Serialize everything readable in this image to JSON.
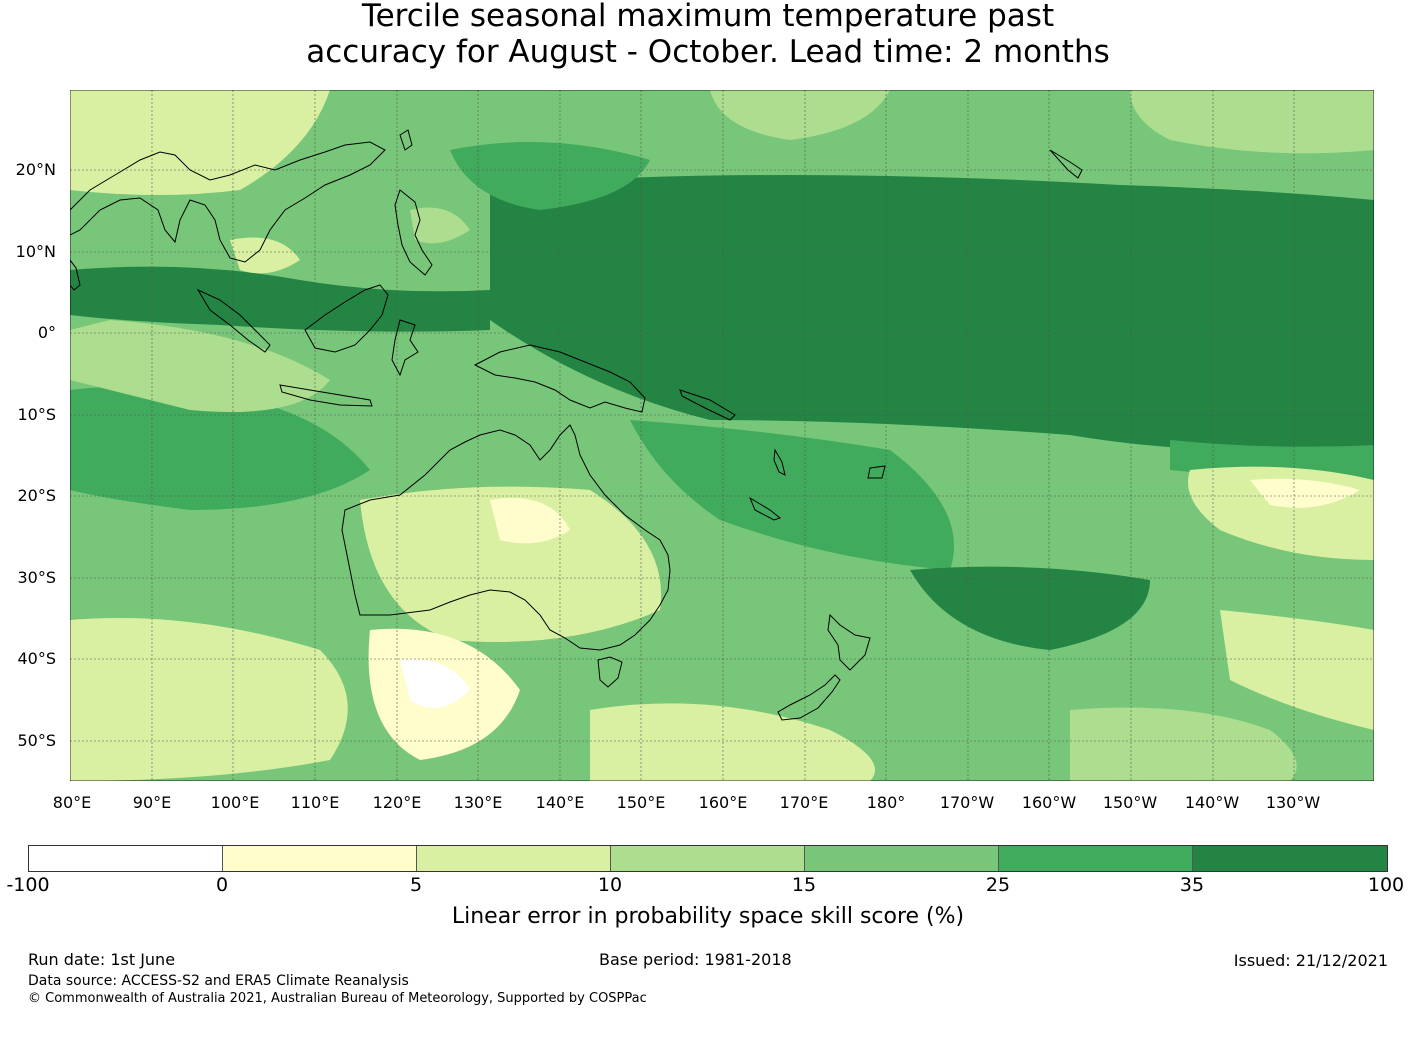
{
  "title": {
    "line1": "Tercile seasonal maximum temperature past",
    "line2": "accuracy for August - October. Lead time: 2 months"
  },
  "map": {
    "lat_labels": [
      "20°N",
      "10°N",
      "0°",
      "10°S",
      "20°S",
      "30°S",
      "40°S",
      "50°S"
    ],
    "lon_labels": [
      "80°E",
      "90°E",
      "100°E",
      "110°E",
      "120°E",
      "130°E",
      "140°E",
      "150°E",
      "160°E",
      "170°E",
      "180°",
      "170°W",
      "160°W",
      "150°W",
      "140°W",
      "130°W"
    ]
  },
  "colorbar": {
    "ticks": [
      "-100",
      "0",
      "5",
      "10",
      "15",
      "25",
      "35",
      "100"
    ],
    "colors": [
      "#ffffff",
      "#fefdcb",
      "#d9f0a3",
      "#addd8e",
      "#78c679",
      "#41ab5d",
      "#238443"
    ],
    "label": "Linear error in probability space skill score (%)"
  },
  "footer": {
    "run_date": "Run date: 1st June",
    "base_period": "Base period: 1981-2018",
    "issued": "Issued: 21/12/2021",
    "data_source": "Data source: ACCESS-S2 and ERA5 Climate Reanalysis",
    "copyright": "© Commonwealth of Australia 2021, Australian Bureau of Meteorology, Supported by COSPPac"
  }
}
